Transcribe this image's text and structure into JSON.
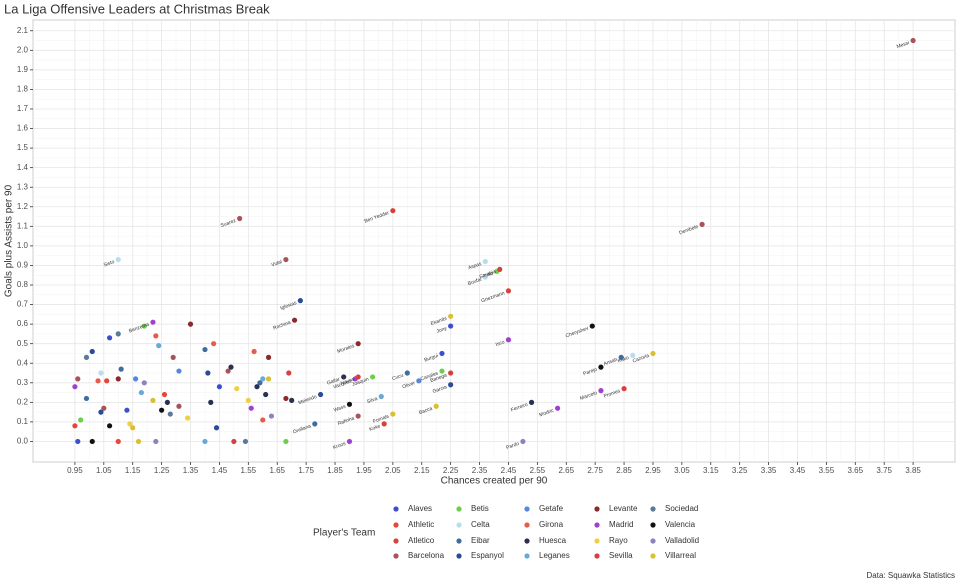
{
  "chart_data": {
    "type": "scatter",
    "title": "La Liga Offensive Leaders at Christmas Break",
    "x_label": "Chances created per 90",
    "y_label": "Goals plus Assists per 90",
    "legend_title": "Player's Team",
    "caption": "Data: Squawka Statistics",
    "grid": true,
    "legend_position": "bottom",
    "xlim": [
      0.805,
      3.995
    ],
    "ylim": [
      -0.105,
      2.155
    ],
    "xticks": [
      0.95,
      1.05,
      1.15,
      1.25,
      1.35,
      1.45,
      1.55,
      1.65,
      1.75,
      1.85,
      1.95,
      2.05,
      2.15,
      2.25,
      2.35,
      2.45,
      2.55,
      2.65,
      2.75,
      2.85,
      2.95,
      3.05,
      3.15,
      3.25,
      3.35,
      3.45,
      3.55,
      3.65,
      3.75,
      3.85
    ],
    "yticks": [
      {
        "value": 0,
        "label": "0.0"
      },
      0.1,
      0.2,
      0.3,
      0.4,
      0.5,
      0.6,
      0.7,
      0.8,
      0.9,
      {
        "value": 1,
        "label": "1.0"
      },
      1.1,
      1.2,
      1.3,
      1.4,
      1.5,
      1.6,
      1.7,
      1.8,
      1.9,
      {
        "value": 2,
        "label": "2.0"
      },
      2.1
    ],
    "series": [
      {
        "name": "Alaves",
        "color": "#3b4fcf",
        "x": [
          2.25,
          2.22,
          0.96,
          1.07,
          1.13,
          1.45
        ],
        "values": [
          0.59,
          0.45,
          0.0,
          0.53,
          0.16,
          0.28
        ],
        "labels": [
          "Jony",
          "Burgui",
          null,
          null,
          null,
          null
        ]
      },
      {
        "name": "Athletic",
        "color": "#e8453c",
        "x": [
          0.95,
          1.06,
          1.1,
          1.26
        ],
        "values": [
          0.08,
          0.31,
          0.0,
          0.24
        ],
        "labels": [
          null,
          null,
          null,
          null
        ]
      },
      {
        "name": "Atletico",
        "color": "#d9413a",
        "x": [
          2.45,
          2.02
        ],
        "values": [
          0.77,
          0.09
        ],
        "labels": [
          "Griezmann",
          "Koke"
        ]
      },
      {
        "name": "Barcelona",
        "color": "#a8525a",
        "x": [
          3.85,
          1.52,
          3.12,
          1.68,
          1.93,
          0.96,
          1.05,
          1.29,
          1.31,
          1.48
        ],
        "values": [
          2.05,
          1.14,
          1.11,
          0.93,
          0.13,
          0.32,
          0.17,
          0.43,
          0.18,
          0.36
        ],
        "labels": [
          "Messi",
          "Suarez",
          "Dembele",
          "Vidal",
          "Rafinha",
          null,
          null,
          null,
          null,
          null
        ]
      },
      {
        "name": "Betis",
        "color": "#6ccf4a",
        "x": [
          2.41,
          2.22,
          1.98,
          0.97,
          1.19,
          1.68
        ],
        "values": [
          0.87,
          0.36,
          0.33,
          0.11,
          0.59,
          0.0
        ],
        "labels": [
          "Tello",
          "Canales",
          "Joaquin",
          null,
          null,
          null
        ]
      },
      {
        "name": "Celta",
        "color": "#b8dcf0",
        "x": [
          1.1,
          2.37,
          2.37,
          2.88,
          1.04
        ],
        "values": [
          0.93,
          0.92,
          0.84,
          0.44,
          0.35
        ],
        "labels": [
          "Sisto",
          "Aspas",
          "Boufal",
          "Kako",
          null
        ]
      },
      {
        "name": "Eibar",
        "color": "#3d6e9e",
        "x": [
          2.1,
          1.78,
          2.84,
          0.99,
          1.11,
          1.4,
          1.59
        ],
        "values": [
          0.35,
          0.09,
          0.43,
          0.22,
          0.37,
          0.47,
          0.3
        ],
        "labels": [
          "Cucu",
          "Orellana",
          "Ansah",
          null,
          null,
          null,
          null
        ]
      },
      {
        "name": "Espanyol",
        "color": "#2a4a9a",
        "x": [
          1.73,
          2.25,
          1.8,
          1.01,
          1.04,
          1.41,
          1.44
        ],
        "values": [
          0.72,
          0.29,
          0.24,
          0.46,
          0.15,
          0.35,
          0.07
        ],
        "labels": [
          "Iglesias",
          "Garcia",
          "Melendo",
          null,
          null,
          null,
          null
        ]
      },
      {
        "name": "Getafe",
        "color": "#5588dd",
        "x": [
          2.14,
          1.16,
          1.31
        ],
        "values": [
          0.31,
          0.32,
          0.36
        ],
        "labels": [
          "Oliver",
          null,
          null
        ]
      },
      {
        "name": "Girona",
        "color": "#e85a4a",
        "x": [
          1.03,
          1.23,
          1.43,
          1.57,
          1.6
        ],
        "values": [
          0.31,
          0.54,
          0.5,
          0.46,
          0.11
        ],
        "labels": [
          null,
          null,
          null,
          null,
          null
        ]
      },
      {
        "name": "Huesca",
        "color": "#2a3050",
        "x": [
          1.88,
          2.53,
          1.27,
          1.42,
          1.49,
          1.58,
          1.61,
          1.7
        ],
        "values": [
          0.33,
          0.2,
          0.2,
          0.2,
          0.38,
          0.28,
          0.24,
          0.21
        ],
        "labels": [
          "Gallar",
          "Ferreiro",
          null,
          null,
          null,
          null,
          null,
          null
        ]
      },
      {
        "name": "Leganes",
        "color": "#6aa8d8",
        "x": [
          2.01,
          1.18,
          1.24,
          1.4,
          1.6
        ],
        "values": [
          0.23,
          0.25,
          0.49,
          0.0,
          0.32
        ],
        "labels": [
          "Silva",
          null,
          null,
          null,
          null
        ]
      },
      {
        "name": "Levante",
        "color": "#8b2a2a",
        "x": [
          1.71,
          1.93,
          1.1,
          1.35,
          1.62,
          1.68
        ],
        "values": [
          0.62,
          0.5,
          0.32,
          0.6,
          0.43,
          0.22
        ],
        "labels": [
          "Rochina",
          "Morales",
          null,
          null,
          null,
          null
        ]
      },
      {
        "name": "Madrid",
        "color": "#a040d0",
        "x": [
          1.22,
          2.45,
          1.92,
          1.9,
          2.77,
          2.62,
          0.95,
          1.56
        ],
        "values": [
          0.61,
          0.52,
          0.32,
          0.0,
          0.26,
          0.17,
          0.28,
          0.17
        ],
        "labels": [
          "Benzema",
          "Isco",
          "Vazquez",
          "Kroos",
          "Marcelo",
          "Modric",
          null,
          null
        ]
      },
      {
        "name": "Rayo",
        "color": "#f0d040",
        "x": [
          1.14,
          1.34,
          1.51,
          1.55
        ],
        "values": [
          0.09,
          0.12,
          0.27,
          0.21
        ],
        "labels": [
          null,
          null,
          null,
          null
        ]
      },
      {
        "name": "Sevilla",
        "color": "#d84040",
        "x": [
          2.05,
          2.42,
          2.25,
          1.93,
          2.85,
          1.5,
          1.69
        ],
        "values": [
          1.18,
          0.88,
          0.35,
          0.33,
          0.27,
          0.0,
          0.35
        ],
        "labels": [
          "Ben Yedder",
          "Sarabia",
          "Banega",
          "Navas",
          "Promes",
          null,
          null
        ]
      },
      {
        "name": "Sociedad",
        "color": "#5a7a9a",
        "x": [
          0.99,
          1.1,
          1.28,
          1.54
        ],
        "values": [
          0.43,
          0.55,
          0.14,
          0.0
        ],
        "labels": [
          null,
          null,
          null,
          null
        ]
      },
      {
        "name": "Valencia",
        "color": "#111111",
        "x": [
          2.74,
          2.77,
          1.9,
          1.01,
          1.07,
          1.25
        ],
        "values": [
          0.59,
          0.38,
          0.19,
          0.0,
          0.08,
          0.16
        ],
        "labels": [
          "Cheryshev",
          "Parejo",
          "Wass",
          null,
          null,
          null
        ]
      },
      {
        "name": "Valladolid",
        "color": "#9080c0",
        "x": [
          2.5,
          1.19,
          1.23,
          1.63
        ],
        "values": [
          0.0,
          0.3,
          0.0,
          0.13
        ],
        "labels": [
          "Pardo",
          null,
          null,
          null
        ]
      },
      {
        "name": "Villarreal",
        "color": "#d8c030",
        "x": [
          2.95,
          2.25,
          2.05,
          2.2,
          1.15,
          1.17,
          1.22,
          1.62
        ],
        "values": [
          0.45,
          0.64,
          0.14,
          0.18,
          0.07,
          0.0,
          0.21,
          0.32
        ],
        "labels": [
          "Cazorla",
          "Ekambi",
          "Fornals",
          "Bacca",
          null,
          null,
          null,
          null
        ]
      }
    ]
  }
}
